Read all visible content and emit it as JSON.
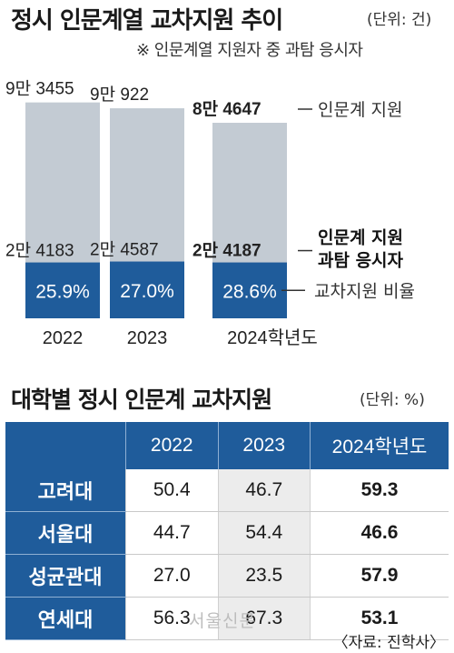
{
  "header": {
    "title": "정시 인문계열 교차지원 추이",
    "unit": "(단위: 건)",
    "note": "※ 인문계열 지원자 중 과탐 응시자"
  },
  "chart_data": {
    "type": "bar",
    "categories": [
      "2022",
      "2023",
      "2024학년도"
    ],
    "series": [
      {
        "name": "인문계 지원",
        "values": [
          93455,
          90922,
          84647
        ],
        "labels": [
          "9만 3455",
          "9만 922",
          "8만 4647"
        ]
      },
      {
        "name": "인문계 지원 과탐 응시자",
        "values": [
          24183,
          24587,
          24187
        ],
        "labels": [
          "2만 4183",
          "2만 4587",
          "2만 4187"
        ]
      }
    ],
    "ratio": {
      "name": "교차지원 비율",
      "values": [
        25.9,
        27.0,
        28.6
      ],
      "labels": [
        "25.9%",
        "27.0%",
        "28.6%"
      ]
    },
    "legend": [
      "인문계 지원",
      "인문계 지원 과탐 응시자",
      "교차지원 비율"
    ],
    "ylim": [
      0,
      100000
    ],
    "colors": {
      "total": "#c3cbd3",
      "science": "#1f5c9b",
      "ratio_text": "#ffffff"
    }
  },
  "table": {
    "title": "대학별 정시 인문계 교차지원",
    "unit": "(단위: %)",
    "headers": [
      "",
      "2022",
      "2023",
      "2024학년도"
    ],
    "rows": [
      {
        "name": "고려대",
        "v2022": "50.4",
        "v2023": "46.7",
        "v2024": "59.3"
      },
      {
        "name": "서울대",
        "v2022": "44.7",
        "v2023": "54.4",
        "v2024": "46.6"
      },
      {
        "name": "성균관대",
        "v2022": "27.0",
        "v2023": "23.5",
        "v2024": "57.9"
      },
      {
        "name": "연세대",
        "v2022": "56.3",
        "v2023": "67.3",
        "v2024": "53.1"
      }
    ]
  },
  "footer": {
    "watermark": "서울신문",
    "source": "〈자료: 진학사〉"
  }
}
